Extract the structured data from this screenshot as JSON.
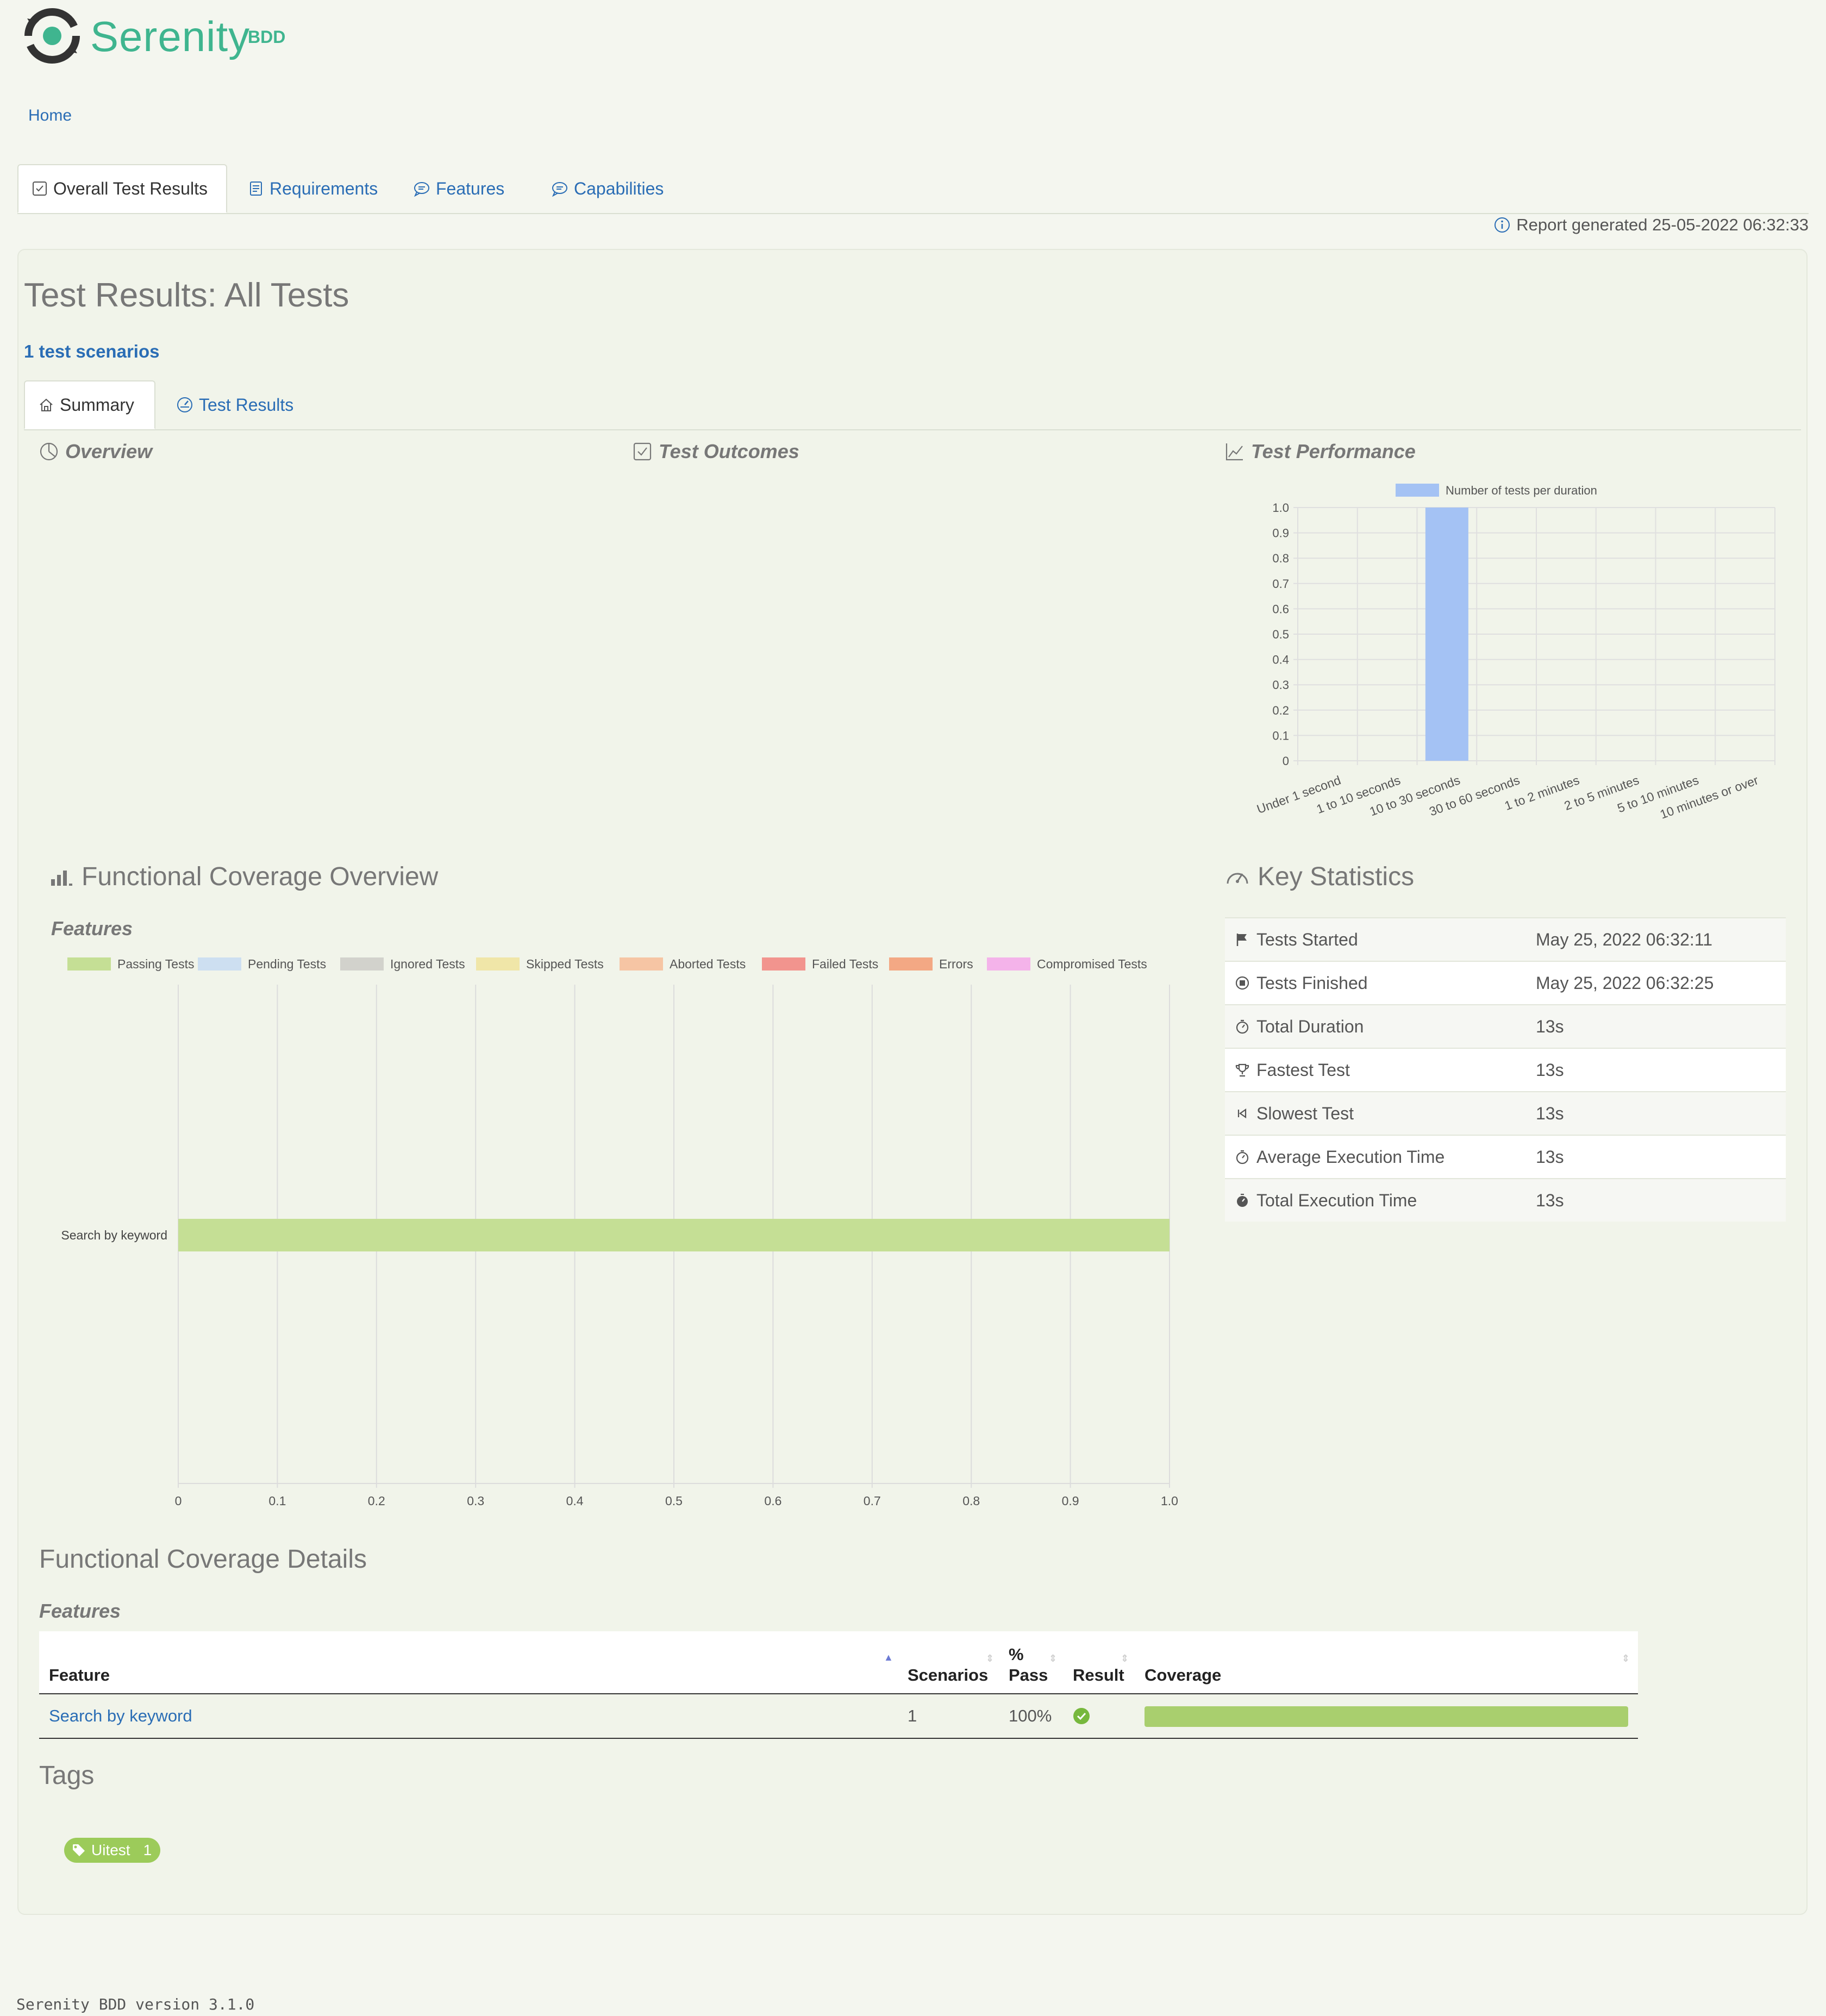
{
  "brand": {
    "name": "Serenity",
    "suffix": "BDD"
  },
  "breadcrumb": {
    "home": "Home"
  },
  "main_tabs": [
    {
      "label": "Overall Test Results",
      "icon": "checkbox-icon",
      "active": true
    },
    {
      "label": "Requirements",
      "icon": "document-icon",
      "active": false
    },
    {
      "label": "Features",
      "icon": "chat-bubble-icon",
      "active": false
    },
    {
      "label": "Capabilities",
      "icon": "chat-bubble-icon",
      "active": false
    }
  ],
  "report_generated": "Report generated 25-05-2022 06:32:33",
  "page_title": "Test Results: All Tests",
  "scenario_count": "1 test scenarios",
  "sub_tabs": [
    {
      "label": "Summary",
      "icon": "home-icon",
      "active": true
    },
    {
      "label": "Test Results",
      "icon": "dashboard-icon",
      "active": false
    }
  ],
  "sections": {
    "overview": "Overview",
    "test_outcomes": "Test Outcomes",
    "test_performance": "Test Performance",
    "functional_coverage_overview": "Functional Coverage Overview",
    "features_label": "Features",
    "key_statistics": "Key Statistics",
    "functional_coverage_details": "Functional Coverage Details",
    "details_features_label": "Features",
    "tags": "Tags"
  },
  "chart_data": [
    {
      "type": "bar",
      "legend": [
        "Number of tests per duration"
      ],
      "categories": [
        "Under 1 second",
        "1 to 10 seconds",
        "10 to 30 seconds",
        "30 to 60 seconds",
        "1 to 2 minutes",
        "2 to 5 minutes",
        "5 to 10 minutes",
        "10 minutes or over"
      ],
      "series": [
        {
          "name": "Number of tests per duration",
          "values": [
            0,
            0,
            1,
            0,
            0,
            0,
            0,
            0
          ]
        }
      ],
      "ylim": [
        0,
        1.0
      ],
      "yticks": [
        "1.0",
        "0.9",
        "0.8",
        "0.7",
        "0.6",
        "0.5",
        "0.4",
        "0.3",
        "0.2",
        "0.1",
        "0"
      ],
      "grid": true,
      "legend_position": "top",
      "color": "#a4c2f4"
    },
    {
      "type": "bar",
      "orientation": "horizontal",
      "categories": [
        "Search by keyword"
      ],
      "series": [
        {
          "name": "Passing Tests",
          "color": "#c5df95",
          "values": [
            1
          ]
        },
        {
          "name": "Pending Tests",
          "color": "#cddff1",
          "values": [
            0
          ]
        },
        {
          "name": "Ignored Tests",
          "color": "#d2d2cc",
          "values": [
            0
          ]
        },
        {
          "name": "Skipped Tests",
          "color": "#f0e6a8",
          "values": [
            0
          ]
        },
        {
          "name": "Aborted Tests",
          "color": "#f6c5a4",
          "values": [
            0
          ]
        },
        {
          "name": "Failed Tests",
          "color": "#f2948e",
          "values": [
            0
          ]
        },
        {
          "name": "Errors",
          "color": "#f3a884",
          "values": [
            0
          ]
        },
        {
          "name": "Compromised Tests",
          "color": "#f4b3ea",
          "values": [
            0
          ]
        }
      ],
      "xlim": [
        0,
        1.0
      ],
      "xticks": [
        "0",
        "0.1",
        "0.2",
        "0.3",
        "0.4",
        "0.5",
        "0.6",
        "0.7",
        "0.8",
        "0.9",
        "1.0"
      ],
      "grid": true,
      "legend_position": "top"
    }
  ],
  "key_statistics": [
    {
      "icon": "flag-icon",
      "label": "Tests Started",
      "value": "May 25, 2022 06:32:11"
    },
    {
      "icon": "stop-circle-icon",
      "label": "Tests Finished",
      "value": "May 25, 2022 06:32:25"
    },
    {
      "icon": "stopwatch-icon",
      "label": "Total Duration",
      "value": "13s"
    },
    {
      "icon": "trophy-icon",
      "label": "Fastest Test",
      "value": "13s"
    },
    {
      "icon": "skip-back-icon",
      "label": "Slowest Test",
      "value": "13s"
    },
    {
      "icon": "stopwatch-icon",
      "label": "Average Execution Time",
      "value": "13s"
    },
    {
      "icon": "stopwatch-filled-icon",
      "label": "Total Execution Time",
      "value": "13s"
    }
  ],
  "coverage_table": {
    "headers": {
      "feature": "Feature",
      "scenarios": "Scenarios",
      "pass_pct_line1": "%",
      "pass_pct_line2": "Pass",
      "result": "Result",
      "coverage": "Coverage"
    },
    "rows": [
      {
        "feature": "Search by keyword",
        "scenarios": "1",
        "pass_pct": "100%",
        "result": "passed",
        "coverage": 1.0
      }
    ]
  },
  "tags": [
    {
      "name": "Uitest",
      "count": "1"
    }
  ],
  "footer": "Serenity BDD version 3.1.0"
}
